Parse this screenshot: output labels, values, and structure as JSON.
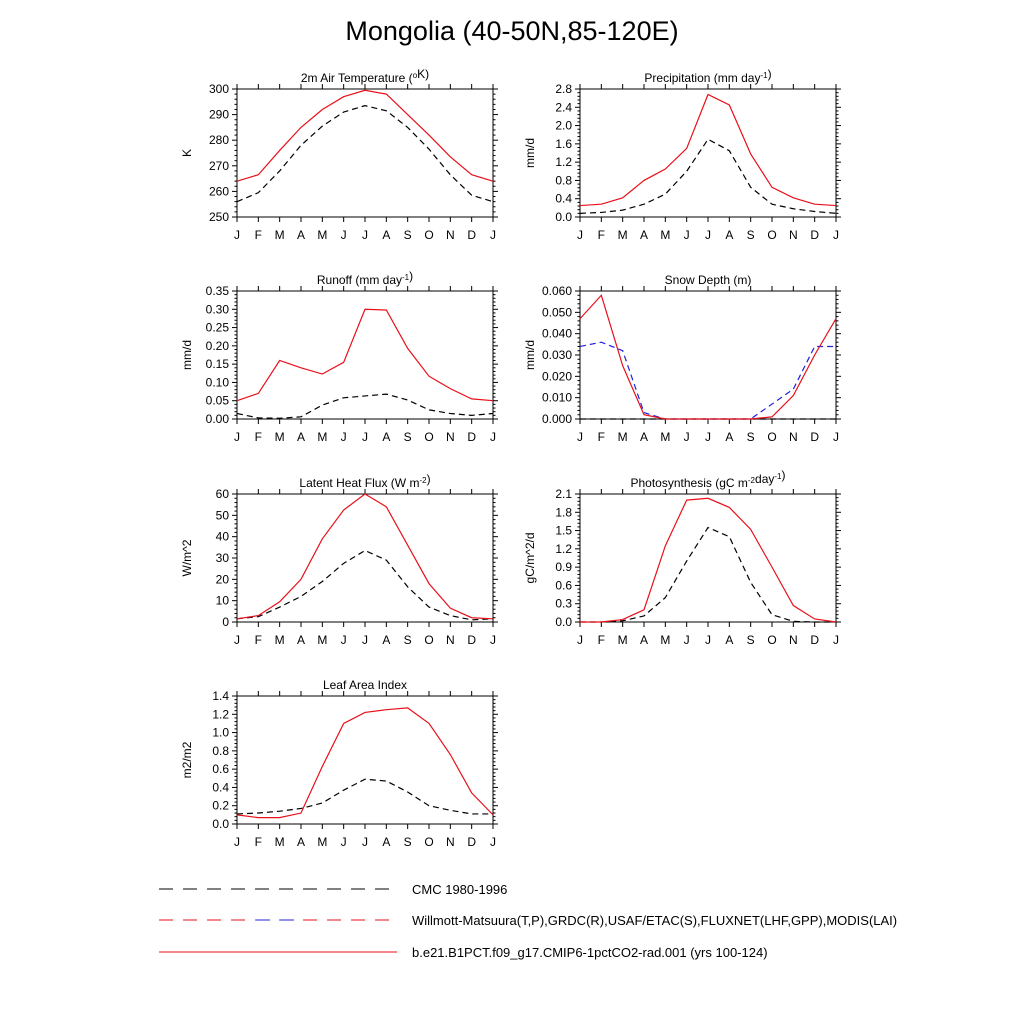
{
  "page": {
    "title": "Mongolia (40-50N,85-120E)"
  },
  "colors": {
    "model": "#e8101a",
    "cmc": "#000000",
    "obs_snow": "#2020e0"
  },
  "chart_data": [
    {
      "id": "tsa",
      "type": "line",
      "title": "2m Air Temperature (",
      "title_sup": "o",
      "title_end": "K)",
      "ylabel": "K",
      "x": [
        "J",
        "F",
        "M",
        "A",
        "M",
        "J",
        "J",
        "A",
        "S",
        "O",
        "N",
        "D",
        "J"
      ],
      "ylim": [
        250,
        300
      ],
      "yticks": [
        "250",
        "260",
        "270",
        "280",
        "290",
        "300"
      ],
      "series": [
        {
          "role": "model",
          "values": [
            264,
            266.5,
            276,
            285,
            292,
            297,
            299.5,
            298,
            290,
            282,
            273.5,
            266.5,
            264
          ]
        },
        {
          "role": "cmc",
          "values": [
            256,
            259.5,
            268,
            278,
            285.5,
            291,
            293.5,
            291.5,
            285,
            276.5,
            266.5,
            258.5,
            256
          ]
        }
      ]
    },
    {
      "id": "prec",
      "type": "line",
      "title": "Precipitation (mm day",
      "title_sup": "-1",
      "title_end": ")",
      "ylabel": "mm/d",
      "x": [
        "J",
        "F",
        "M",
        "A",
        "M",
        "J",
        "J",
        "A",
        "S",
        "O",
        "N",
        "D",
        "J"
      ],
      "ylim": [
        0,
        2.8
      ],
      "yticks": [
        "0.0",
        "0.4",
        "0.8",
        "1.2",
        "1.6",
        "2.0",
        "2.4",
        "2.8"
      ],
      "series": [
        {
          "role": "model",
          "values": [
            0.25,
            0.28,
            0.42,
            0.8,
            1.05,
            1.5,
            2.68,
            2.45,
            1.38,
            0.65,
            0.42,
            0.28,
            0.25
          ]
        },
        {
          "role": "cmc",
          "values": [
            0.08,
            0.1,
            0.15,
            0.28,
            0.5,
            1.0,
            1.7,
            1.45,
            0.65,
            0.28,
            0.18,
            0.12,
            0.08
          ]
        }
      ]
    },
    {
      "id": "runoff",
      "type": "line",
      "title": "Runoff (mm day",
      "title_sup": "-1",
      "title_end": ")",
      "ylabel": "mm/d",
      "x": [
        "J",
        "F",
        "M",
        "A",
        "M",
        "J",
        "J",
        "A",
        "S",
        "O",
        "N",
        "D",
        "J"
      ],
      "ylim": [
        0,
        0.35
      ],
      "yticks": [
        "0.00",
        "0.05",
        "0.10",
        "0.15",
        "0.20",
        "0.25",
        "0.30",
        "0.35"
      ],
      "series": [
        {
          "role": "model",
          "values": [
            0.05,
            0.07,
            0.16,
            0.14,
            0.123,
            0.155,
            0.3,
            0.298,
            0.193,
            0.117,
            0.083,
            0.055,
            0.05
          ]
        },
        {
          "role": "cmc",
          "values": [
            0.015,
            0.003,
            0.002,
            0.006,
            0.038,
            0.058,
            0.063,
            0.068,
            0.052,
            0.025,
            0.015,
            0.01,
            0.015
          ]
        }
      ]
    },
    {
      "id": "snowdp",
      "type": "line",
      "title": "Snow Depth (m)",
      "title_sup": "",
      "title_end": "",
      "ylabel": "mm/d",
      "x": [
        "J",
        "F",
        "M",
        "A",
        "M",
        "J",
        "J",
        "A",
        "S",
        "O",
        "N",
        "D",
        "J"
      ],
      "ylim": [
        0,
        0.06
      ],
      "yticks": [
        "0.000",
        "0.010",
        "0.020",
        "0.030",
        "0.040",
        "0.050",
        "0.060"
      ],
      "series": [
        {
          "role": "model",
          "values": [
            0.047,
            0.058,
            0.025,
            0.002,
            0.0,
            0.0,
            0.0,
            0.0,
            0.0,
            0.001,
            0.011,
            0.03,
            0.047
          ]
        },
        {
          "role": "obs_snow",
          "values": [
            0.034,
            0.036,
            0.032,
            0.003,
            0.0,
            0.0,
            0.0,
            0.0,
            0.0,
            0.007,
            0.014,
            0.034,
            0.034
          ]
        },
        {
          "role": "cmc",
          "values": [
            0.0,
            0.0,
            0.0,
            0.0,
            0.0,
            0.0,
            0.0,
            0.0,
            0.0,
            0.0,
            0.0,
            0.0,
            0.0
          ]
        }
      ]
    },
    {
      "id": "lhf",
      "type": "line",
      "title": "Latent Heat Flux (W m",
      "title_sup": "-2",
      "title_end": ")",
      "ylabel": "W/m^2",
      "x": [
        "J",
        "F",
        "M",
        "A",
        "M",
        "J",
        "J",
        "A",
        "S",
        "O",
        "N",
        "D",
        "J"
      ],
      "ylim": [
        0,
        60
      ],
      "yticks": [
        "0",
        "10",
        "20",
        "30",
        "40",
        "50",
        "60"
      ],
      "series": [
        {
          "role": "model",
          "values": [
            1.5,
            3,
            9.5,
            20,
            39,
            52.5,
            60,
            54,
            36,
            18,
            6.5,
            2,
            1.5
          ]
        },
        {
          "role": "cmc",
          "values": [
            1.5,
            2.5,
            7,
            12,
            19,
            27.5,
            33.5,
            29,
            16.5,
            7,
            3,
            1,
            1.5
          ]
        }
      ]
    },
    {
      "id": "gpp",
      "type": "line",
      "title": "Photosynthesis (gC m",
      "title_sup": "-2",
      "title_mid": "day",
      "title_sup2": "-1",
      "title_end": ")",
      "ylabel": "gC/m^2/d",
      "x": [
        "J",
        "F",
        "M",
        "A",
        "M",
        "J",
        "J",
        "A",
        "S",
        "O",
        "N",
        "D",
        "J"
      ],
      "ylim": [
        0,
        2.1
      ],
      "yticks": [
        "0.0",
        "0.3",
        "0.6",
        "0.9",
        "1.2",
        "1.5",
        "1.8",
        "2.1"
      ],
      "series": [
        {
          "role": "model",
          "values": [
            0.0,
            0.0,
            0.04,
            0.2,
            1.25,
            2.0,
            2.03,
            1.88,
            1.52,
            0.9,
            0.27,
            0.05,
            0.0
          ]
        },
        {
          "role": "cmc",
          "values": [
            0.0,
            0.0,
            0.02,
            0.1,
            0.4,
            1.0,
            1.55,
            1.4,
            0.65,
            0.12,
            0.01,
            0.0,
            0.0
          ]
        }
      ]
    },
    {
      "id": "lai",
      "type": "line",
      "title": "Leaf Area Index",
      "title_sup": "",
      "title_end": "",
      "ylabel": "m2/m2",
      "x": [
        "J",
        "F",
        "M",
        "A",
        "M",
        "J",
        "J",
        "A",
        "S",
        "O",
        "N",
        "D",
        "J"
      ],
      "ylim": [
        0,
        1.4
      ],
      "yticks": [
        "0.0",
        "0.2",
        "0.4",
        "0.6",
        "0.8",
        "1.0",
        "1.2",
        "1.4"
      ],
      "series": [
        {
          "role": "model",
          "values": [
            0.1,
            0.07,
            0.07,
            0.12,
            0.63,
            1.1,
            1.22,
            1.25,
            1.27,
            1.1,
            0.76,
            0.34,
            0.1
          ]
        },
        {
          "role": "cmc",
          "values": [
            0.11,
            0.12,
            0.14,
            0.17,
            0.23,
            0.37,
            0.49,
            0.47,
            0.35,
            0.2,
            0.15,
            0.11,
            0.11
          ]
        }
      ]
    }
  ],
  "legend": [
    {
      "role": "cmc",
      "label": "CMC 1980-1996"
    },
    {
      "role": "obs",
      "label": "Willmott-Matsuura(T,P),GRDC(R),USAF/ETAC(S),FLUXNET(LHF,GPP),MODIS(LAI)"
    },
    {
      "role": "model",
      "label": "b.e21.B1PCT.f09_g17.CMIP6-1pctCO2-rad.001 (yrs 100-124)"
    }
  ]
}
